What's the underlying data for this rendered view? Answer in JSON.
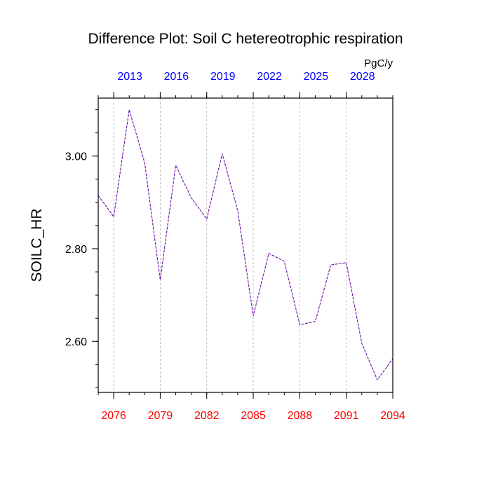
{
  "chart_data": {
    "type": "line",
    "title": "Difference Plot: Soil C hetereotrophic respiration",
    "ylabel": "SOILC_HR",
    "units": "PgC/y",
    "xlim": [
      2075,
      2094
    ],
    "ylim": [
      2.49,
      3.125
    ],
    "x_bottom_ticks": [
      2076,
      2079,
      2082,
      2085,
      2088,
      2091,
      2094
    ],
    "x_bottom_tick_labels": [
      "2076",
      "2079",
      "2082",
      "2085",
      "2088",
      "2091",
      "2094"
    ],
    "x_top_ticks": [
      2076,
      2079,
      2082,
      2085,
      2088,
      2091
    ],
    "x_top_tick_labels": [
      "2013",
      "2016",
      "2019",
      "2022",
      "2025",
      "2028"
    ],
    "y_ticks": [
      2.6,
      2.8,
      3.0
    ],
    "y_tick_labels": [
      "2.60",
      "2.80",
      "3.00"
    ],
    "vertical_gridlines": true,
    "x": [
      2075,
      2076,
      2077,
      2078,
      2079,
      2080,
      2081,
      2082,
      2083,
      2084,
      2085,
      2086,
      2087,
      2088,
      2089,
      2090,
      2091,
      2092,
      2093,
      2094
    ],
    "series": [
      {
        "values": [
          2.915,
          2.869,
          3.1,
          2.985,
          2.733,
          2.98,
          2.91,
          2.864,
          3.005,
          2.882,
          2.655,
          2.79,
          2.773,
          2.636,
          2.643,
          2.765,
          2.77,
          2.596,
          2.517,
          2.563
        ],
        "color": "#6a0dad"
      }
    ],
    "colors": {
      "bottom_tick_labels": "#ff0000",
      "top_tick_labels": "#0000ff",
      "line": "#6a0dad",
      "grid": "#b0b0b0"
    }
  }
}
